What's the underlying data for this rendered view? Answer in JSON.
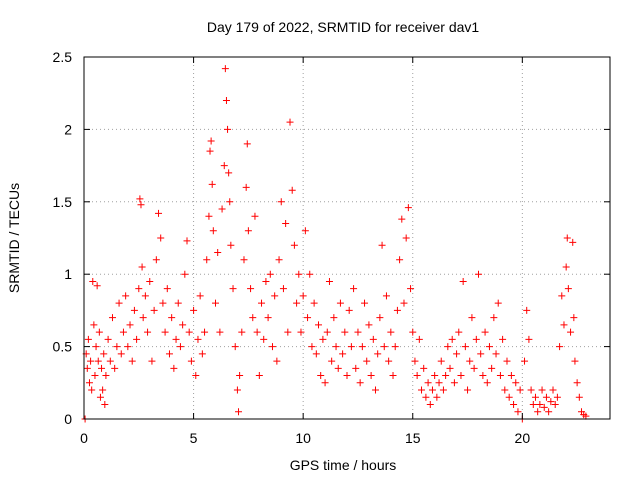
{
  "chart_data": {
    "type": "scatter",
    "title": "Day 179 of 2022, SRMTID for receiver dav1",
    "xlabel": "GPS time / hours",
    "ylabel": "SRMTID / TECUs",
    "xlim": [
      0,
      24
    ],
    "ylim": [
      0,
      2.5
    ],
    "xticks": [
      "0",
      "5",
      "10",
      "15",
      "20"
    ],
    "yticks": [
      "0",
      "0.5",
      "1",
      "1.5",
      "2",
      "2.5"
    ],
    "xtick_values": [
      0,
      5,
      10,
      15,
      20
    ],
    "ytick_values": [
      0,
      0.5,
      1,
      1.5,
      2,
      2.5
    ],
    "grid": true,
    "marker": "+",
    "color": "#ff0000",
    "series": [
      {
        "name": "SRMTID",
        "points": [
          [
            0.05,
            0.0
          ],
          [
            0.1,
            0.45
          ],
          [
            0.15,
            0.35
          ],
          [
            0.2,
            0.55
          ],
          [
            0.25,
            0.25
          ],
          [
            0.3,
            0.4
          ],
          [
            0.35,
            0.2
          ],
          [
            0.4,
            0.95
          ],
          [
            0.45,
            0.65
          ],
          [
            0.5,
            0.3
          ],
          [
            0.55,
            0.5
          ],
          [
            0.6,
            0.92
          ],
          [
            0.65,
            0.4
          ],
          [
            0.7,
            0.6
          ],
          [
            0.75,
            0.15
          ],
          [
            0.8,
            0.35
          ],
          [
            0.85,
            0.2
          ],
          [
            0.9,
            0.45
          ],
          [
            0.95,
            0.1
          ],
          [
            1.0,
            0.3
          ],
          [
            1.1,
            0.55
          ],
          [
            1.2,
            0.4
          ],
          [
            1.3,
            0.7
          ],
          [
            1.4,
            0.35
          ],
          [
            1.5,
            0.5
          ],
          [
            1.6,
            0.8
          ],
          [
            1.7,
            0.45
          ],
          [
            1.8,
            0.6
          ],
          [
            1.9,
            0.85
          ],
          [
            2.0,
            0.5
          ],
          [
            2.1,
            0.65
          ],
          [
            2.2,
            0.4
          ],
          [
            2.3,
            0.75
          ],
          [
            2.4,
            0.55
          ],
          [
            2.5,
            0.9
          ],
          [
            2.55,
            1.52
          ],
          [
            2.6,
            1.48
          ],
          [
            2.65,
            1.05
          ],
          [
            2.7,
            0.7
          ],
          [
            2.8,
            0.85
          ],
          [
            2.9,
            0.6
          ],
          [
            3.0,
            0.95
          ],
          [
            3.1,
            0.4
          ],
          [
            3.2,
            0.75
          ],
          [
            3.3,
            1.1
          ],
          [
            3.4,
            1.42
          ],
          [
            3.5,
            1.25
          ],
          [
            3.6,
            0.8
          ],
          [
            3.7,
            0.6
          ],
          [
            3.8,
            0.9
          ],
          [
            3.9,
            0.45
          ],
          [
            4.0,
            0.7
          ],
          [
            4.1,
            0.35
          ],
          [
            4.2,
            0.55
          ],
          [
            4.3,
            0.8
          ],
          [
            4.4,
            0.5
          ],
          [
            4.5,
            0.65
          ],
          [
            4.6,
            1.0
          ],
          [
            4.7,
            1.23
          ],
          [
            4.8,
            0.6
          ],
          [
            4.9,
            0.4
          ],
          [
            5.0,
            0.75
          ],
          [
            5.1,
            0.3
          ],
          [
            5.2,
            0.55
          ],
          [
            5.3,
            0.85
          ],
          [
            5.4,
            0.45
          ],
          [
            5.5,
            0.6
          ],
          [
            5.6,
            1.1
          ],
          [
            5.7,
            1.4
          ],
          [
            5.75,
            1.85
          ],
          [
            5.8,
            1.92
          ],
          [
            5.85,
            1.62
          ],
          [
            5.9,
            1.3
          ],
          [
            6.0,
            0.8
          ],
          [
            6.1,
            1.15
          ],
          [
            6.2,
            0.6
          ],
          [
            6.3,
            1.45
          ],
          [
            6.4,
            1.75
          ],
          [
            6.45,
            2.42
          ],
          [
            6.5,
            2.2
          ],
          [
            6.55,
            2.0
          ],
          [
            6.6,
            1.7
          ],
          [
            6.65,
            1.5
          ],
          [
            6.7,
            1.2
          ],
          [
            6.8,
            0.9
          ],
          [
            6.9,
            0.5
          ],
          [
            7.0,
            0.2
          ],
          [
            7.05,
            0.05
          ],
          [
            7.1,
            0.3
          ],
          [
            7.2,
            0.6
          ],
          [
            7.3,
            1.1
          ],
          [
            7.4,
            1.6
          ],
          [
            7.45,
            1.9
          ],
          [
            7.5,
            1.3
          ],
          [
            7.6,
            0.9
          ],
          [
            7.7,
            0.7
          ],
          [
            7.8,
            1.4
          ],
          [
            7.9,
            0.6
          ],
          [
            8.0,
            0.3
          ],
          [
            8.1,
            0.8
          ],
          [
            8.2,
            0.55
          ],
          [
            8.3,
            0.95
          ],
          [
            8.4,
            0.7
          ],
          [
            8.5,
            1.0
          ],
          [
            8.6,
            0.5
          ],
          [
            8.7,
            0.85
          ],
          [
            8.8,
            0.4
          ],
          [
            8.9,
            1.1
          ],
          [
            9.0,
            1.5
          ],
          [
            9.1,
            0.9
          ],
          [
            9.2,
            1.35
          ],
          [
            9.3,
            0.6
          ],
          [
            9.4,
            2.05
          ],
          [
            9.5,
            1.58
          ],
          [
            9.6,
            1.2
          ],
          [
            9.7,
            0.8
          ],
          [
            9.8,
            1.0
          ],
          [
            9.9,
            0.6
          ],
          [
            10.0,
            0.85
          ],
          [
            10.1,
            1.3
          ],
          [
            10.2,
            0.7
          ],
          [
            10.3,
            1.0
          ],
          [
            10.4,
            0.5
          ],
          [
            10.5,
            0.8
          ],
          [
            10.6,
            0.45
          ],
          [
            10.7,
            0.65
          ],
          [
            10.8,
            0.3
          ],
          [
            10.9,
            0.55
          ],
          [
            11.0,
            0.25
          ],
          [
            11.1,
            0.6
          ],
          [
            11.2,
            0.95
          ],
          [
            11.3,
            0.4
          ],
          [
            11.4,
            0.7
          ],
          [
            11.5,
            0.5
          ],
          [
            11.6,
            0.35
          ],
          [
            11.7,
            0.8
          ],
          [
            11.8,
            0.45
          ],
          [
            11.9,
            0.6
          ],
          [
            12.0,
            0.3
          ],
          [
            12.1,
            0.75
          ],
          [
            12.2,
            0.5
          ],
          [
            12.3,
            0.9
          ],
          [
            12.4,
            0.35
          ],
          [
            12.5,
            0.6
          ],
          [
            12.6,
            0.25
          ],
          [
            12.7,
            0.5
          ],
          [
            12.8,
            0.8
          ],
          [
            12.9,
            0.4
          ],
          [
            13.0,
            0.65
          ],
          [
            13.1,
            0.3
          ],
          [
            13.2,
            0.55
          ],
          [
            13.3,
            0.2
          ],
          [
            13.4,
            0.45
          ],
          [
            13.5,
            0.7
          ],
          [
            13.6,
            1.2
          ],
          [
            13.7,
            0.5
          ],
          [
            13.8,
            0.85
          ],
          [
            13.9,
            0.4
          ],
          [
            14.0,
            0.6
          ],
          [
            14.1,
            0.3
          ],
          [
            14.2,
            0.5
          ],
          [
            14.3,
            0.75
          ],
          [
            14.4,
            1.1
          ],
          [
            14.5,
            1.38
          ],
          [
            14.6,
            0.8
          ],
          [
            14.7,
            1.25
          ],
          [
            14.8,
            1.46
          ],
          [
            14.9,
            0.9
          ],
          [
            15.0,
            0.6
          ],
          [
            15.1,
            0.4
          ],
          [
            15.2,
            0.3
          ],
          [
            15.3,
            0.55
          ],
          [
            15.4,
            0.2
          ],
          [
            15.5,
            0.35
          ],
          [
            15.6,
            0.15
          ],
          [
            15.7,
            0.25
          ],
          [
            15.8,
            0.1
          ],
          [
            15.9,
            0.2
          ],
          [
            16.0,
            0.3
          ],
          [
            16.1,
            0.15
          ],
          [
            16.2,
            0.25
          ],
          [
            16.3,
            0.4
          ],
          [
            16.4,
            0.2
          ],
          [
            16.5,
            0.3
          ],
          [
            16.6,
            0.5
          ],
          [
            16.7,
            0.35
          ],
          [
            16.8,
            0.55
          ],
          [
            16.9,
            0.25
          ],
          [
            17.0,
            0.45
          ],
          [
            17.1,
            0.6
          ],
          [
            17.2,
            0.3
          ],
          [
            17.3,
            0.95
          ],
          [
            17.4,
            0.5
          ],
          [
            17.5,
            0.2
          ],
          [
            17.6,
            0.4
          ],
          [
            17.7,
            0.7
          ],
          [
            17.8,
            0.35
          ],
          [
            17.9,
            0.55
          ],
          [
            18.0,
            1.0
          ],
          [
            18.1,
            0.45
          ],
          [
            18.2,
            0.3
          ],
          [
            18.3,
            0.6
          ],
          [
            18.4,
            0.25
          ],
          [
            18.5,
            0.5
          ],
          [
            18.6,
            0.35
          ],
          [
            18.7,
            0.7
          ],
          [
            18.8,
            0.45
          ],
          [
            18.9,
            0.8
          ],
          [
            19.0,
            0.3
          ],
          [
            19.1,
            0.55
          ],
          [
            19.2,
            0.2
          ],
          [
            19.3,
            0.4
          ],
          [
            19.4,
            0.15
          ],
          [
            19.5,
            0.3
          ],
          [
            19.6,
            0.1
          ],
          [
            19.7,
            0.25
          ],
          [
            19.8,
            0.05
          ],
          [
            19.9,
            0.2
          ],
          [
            20.0,
            0.0
          ],
          [
            20.1,
            0.4
          ],
          [
            20.2,
            0.75
          ],
          [
            20.3,
            0.55
          ],
          [
            20.4,
            0.2
          ],
          [
            20.5,
            0.1
          ],
          [
            20.6,
            0.15
          ],
          [
            20.7,
            0.05
          ],
          [
            20.8,
            0.1
          ],
          [
            20.9,
            0.2
          ],
          [
            21.0,
            0.08
          ],
          [
            21.1,
            0.15
          ],
          [
            21.2,
            0.05
          ],
          [
            21.3,
            0.12
          ],
          [
            21.4,
            0.2
          ],
          [
            21.5,
            0.1
          ],
          [
            21.6,
            0.15
          ],
          [
            21.7,
            0.5
          ],
          [
            21.8,
            0.85
          ],
          [
            21.9,
            0.65
          ],
          [
            22.0,
            1.05
          ],
          [
            22.05,
            1.25
          ],
          [
            22.1,
            0.9
          ],
          [
            22.2,
            0.6
          ],
          [
            22.3,
            1.22
          ],
          [
            22.35,
            0.7
          ],
          [
            22.4,
            0.4
          ],
          [
            22.5,
            0.25
          ],
          [
            22.6,
            0.15
          ],
          [
            22.7,
            0.05
          ],
          [
            22.8,
            0.03
          ],
          [
            22.9,
            0.02
          ]
        ]
      }
    ]
  }
}
